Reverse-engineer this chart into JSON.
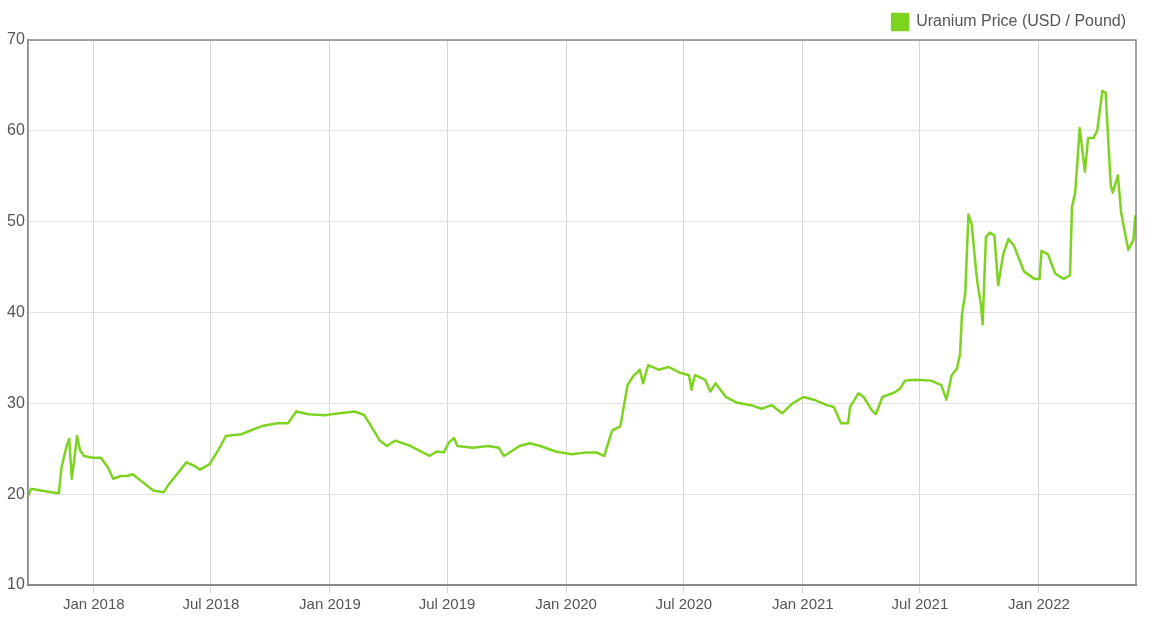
{
  "chart_data": {
    "type": "line",
    "x": [
      "2017-09-21",
      "2017-09-26",
      "2017-10-11",
      "2017-10-27",
      "2017-11-08",
      "2017-11-12",
      "2017-11-20",
      "2017-11-24",
      "2017-11-28",
      "2017-12-03",
      "2017-12-06",
      "2017-12-11",
      "2017-12-17",
      "2017-12-30",
      "2018-01-12",
      "2018-01-23",
      "2018-01-31",
      "2018-02-12",
      "2018-02-22",
      "2018-03-02",
      "2018-03-18",
      "2018-04-03",
      "2018-04-19",
      "2018-04-27",
      "2018-05-13",
      "2018-05-24",
      "2018-06-06",
      "2018-06-14",
      "2018-06-29",
      "2018-07-16",
      "2018-07-24",
      "2018-08-17",
      "2018-09-18",
      "2018-10-12",
      "2018-10-28",
      "2018-11-10",
      "2018-11-29",
      "2018-12-23",
      "2019-01-16",
      "2019-02-09",
      "2019-02-23",
      "2019-03-03",
      "2019-03-19",
      "2019-03-30",
      "2019-04-12",
      "2019-05-06",
      "2019-06-04",
      "2019-06-15",
      "2019-06-26",
      "2019-07-04",
      "2019-07-12",
      "2019-07-17",
      "2019-08-10",
      "2019-09-03",
      "2019-09-19",
      "2019-09-27",
      "2019-10-21",
      "2019-11-06",
      "2019-11-22",
      "2019-12-16",
      "2020-01-09",
      "2020-02-02",
      "2020-02-17",
      "2020-02-29",
      "2020-03-12",
      "2020-03-25",
      "2020-04-05",
      "2020-04-13",
      "2020-04-24",
      "2020-04-29",
      "2020-05-07",
      "2020-05-23",
      "2020-06-08",
      "2020-06-24",
      "2020-07-09",
      "2020-07-13",
      "2020-07-18",
      "2020-08-03",
      "2020-08-11",
      "2020-08-19",
      "2020-09-04",
      "2020-09-20",
      "2020-10-13",
      "2020-10-29",
      "2020-11-14",
      "2020-11-30",
      "2020-12-16",
      "2021-01-02",
      "2021-01-18",
      "2021-02-07",
      "2021-02-18",
      "2021-03-01",
      "2021-03-12",
      "2021-03-15",
      "2021-03-28",
      "2021-04-05",
      "2021-04-18",
      "2021-04-24",
      "2021-05-04",
      "2021-05-23",
      "2021-05-31",
      "2021-06-08",
      "2021-06-24",
      "2021-07-18",
      "2021-08-03",
      "2021-08-11",
      "2021-08-19",
      "2021-08-27",
      "2021-09-01",
      "2021-09-04",
      "2021-09-09",
      "2021-09-14",
      "2021-09-19",
      "2021-09-25",
      "2021-09-28",
      "2021-10-03",
      "2021-10-06",
      "2021-10-11",
      "2021-10-17",
      "2021-10-24",
      "2021-10-30",
      "2021-11-07",
      "2021-11-15",
      "2021-11-23",
      "2021-12-09",
      "2021-12-25",
      "2022-01-02",
      "2022-01-05",
      "2022-01-15",
      "2022-01-26",
      "2022-02-08",
      "2022-02-18",
      "2022-02-21",
      "2022-02-26",
      "2022-03-05",
      "2022-03-13",
      "2022-03-18",
      "2022-03-26",
      "2022-04-01",
      "2022-04-09",
      "2022-04-14",
      "2022-04-22",
      "2022-04-25",
      "2022-05-03",
      "2022-05-08",
      "2022-05-19",
      "2022-05-27",
      "2022-05-30"
    ],
    "series": [
      {
        "name": "Uranium Price (USD / Pound)",
        "color": "#7ed321",
        "values": [
          19.7,
          20.6,
          20.4,
          20.2,
          20.1,
          22.9,
          25.3,
          26.1,
          21.7,
          24.5,
          26.4,
          24.8,
          24.2,
          24.0,
          24.0,
          22.9,
          21.7,
          22.0,
          22.0,
          22.2,
          21.3,
          20.4,
          20.2,
          21.1,
          22.5,
          23.5,
          23.1,
          22.7,
          23.3,
          25.3,
          26.4,
          26.6,
          27.5,
          27.8,
          27.8,
          29.1,
          28.8,
          28.7,
          28.9,
          29.1,
          28.7,
          27.8,
          25.9,
          25.3,
          25.9,
          25.3,
          24.2,
          24.7,
          24.6,
          25.7,
          26.2,
          25.3,
          25.1,
          25.3,
          25.1,
          24.2,
          25.3,
          25.6,
          25.3,
          24.7,
          24.4,
          24.6,
          24.6,
          24.2,
          27.0,
          27.5,
          32.0,
          32.9,
          33.7,
          32.2,
          34.2,
          33.7,
          34.0,
          33.4,
          33.1,
          31.5,
          33.1,
          32.6,
          31.3,
          32.2,
          30.7,
          30.1,
          29.8,
          29.4,
          29.8,
          28.9,
          30.0,
          30.7,
          30.4,
          29.8,
          29.6,
          27.8,
          27.8,
          29.6,
          31.1,
          30.7,
          29.2,
          28.8,
          30.7,
          31.2,
          31.6,
          32.5,
          32.6,
          32.5,
          32.0,
          30.4,
          33.1,
          33.8,
          35.4,
          39.8,
          42.1,
          50.8,
          49.7,
          45.2,
          43.2,
          41.0,
          38.7,
          48.3,
          48.8,
          48.5,
          43.0,
          46.5,
          48.1,
          47.4,
          44.5,
          43.7,
          43.7,
          46.8,
          46.4,
          44.3,
          43.7,
          44.1,
          51.6,
          53.2,
          60.3,
          55.5,
          59.2,
          59.2,
          60.0,
          64.4,
          64.2,
          54.0,
          53.2,
          55.1,
          51.0,
          46.9,
          48.0,
          50.7
        ]
      }
    ],
    "xlim": [
      "2017-09-21",
      "2022-05-31"
    ],
    "xticks": [
      {
        "value": "2018-01-01",
        "label": "Jan 2018"
      },
      {
        "value": "2018-07-01",
        "label": "Jul 2018"
      },
      {
        "value": "2019-01-01",
        "label": "Jan 2019"
      },
      {
        "value": "2019-07-01",
        "label": "Jul 2019"
      },
      {
        "value": "2020-01-01",
        "label": "Jan 2020"
      },
      {
        "value": "2020-07-01",
        "label": "Jul 2020"
      },
      {
        "value": "2021-01-01",
        "label": "Jan 2021"
      },
      {
        "value": "2021-07-01",
        "label": "Jul 2021"
      },
      {
        "value": "2022-01-01",
        "label": "Jan 2022"
      }
    ],
    "ylim": [
      10,
      70
    ],
    "yticks": [
      10,
      20,
      30,
      40,
      50,
      60,
      70
    ],
    "grid": true,
    "legend": "top right",
    "marker": "none",
    "line_style": "solid"
  }
}
